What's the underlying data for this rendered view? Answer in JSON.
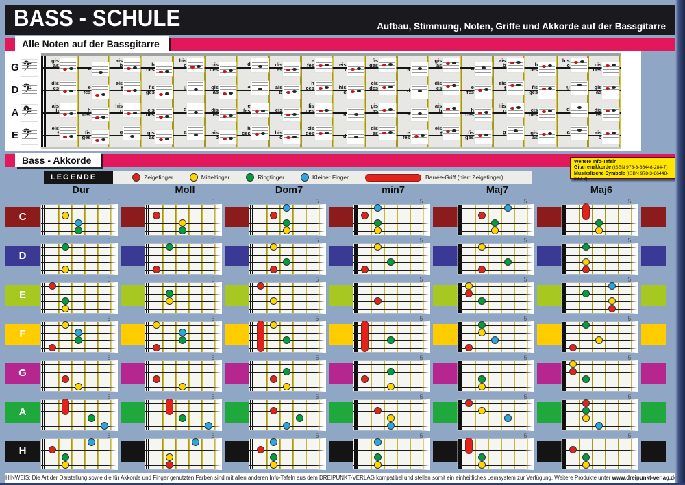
{
  "header": {
    "title": "BASS - SCHULE",
    "subtitle": "Aufbau, Stimmung, Noten, Griffe und Akkorde auf der Bassgitarre"
  },
  "sections": {
    "notes_title": "Alle Noten auf der Bassgitarre",
    "chords_title": "Bass - Akkorde"
  },
  "info_box": {
    "title": "Weitere Info-Tafeln",
    "items": [
      {
        "name": "Gitarrenakkorde",
        "isbn": "(ISBN 978-3-86448-284-7)"
      },
      {
        "name": "Musikalische Symbole",
        "isbn": "(ISBN 978-3-86448-282-3)"
      }
    ]
  },
  "legend": {
    "label": "LEGENDE",
    "fingers": [
      {
        "color": "#E2231A",
        "label": "Zeigefinger"
      },
      {
        "color": "#FFD500",
        "label": "Mittelfinger"
      },
      {
        "color": "#009E3D",
        "label": "Ringfinger"
      },
      {
        "color": "#29A8E0",
        "label": "Kleiner Finger"
      }
    ],
    "barre_label": "Barrée-Griff (hier: Zeigefinger)"
  },
  "fretboard": {
    "strings": [
      {
        "name": "G",
        "notes": [
          "gis|as",
          "a",
          "ais|b",
          "h|ces",
          "his|c",
          "cis|des",
          "d",
          "dis|es",
          "e|fes",
          "eis|f",
          "fis|ges",
          "g",
          "gis|as",
          "a",
          "ais|b",
          "h|ces",
          "his|c",
          "cis|des"
        ]
      },
      {
        "name": "D",
        "notes": [
          "dis|es",
          "e|fes",
          "eis|f",
          "fis|ges",
          "g",
          "gis|as",
          "a",
          "ais|b",
          "h|ces",
          "his|c",
          "cis|des",
          "d",
          "dis|es",
          "e|fes",
          "eis|f",
          "fis|ges",
          "g",
          "gis|as"
        ]
      },
      {
        "name": "A",
        "notes": [
          "ais|b",
          "h|ces",
          "his|c",
          "cis|des",
          "d",
          "dis|es",
          "e|fes",
          "eis|f",
          "fis|ges",
          "g",
          "gis|as",
          "a",
          "ais|b",
          "h|ces",
          "his|c",
          "cis|des",
          "d",
          "dis|es"
        ]
      },
      {
        "name": "E",
        "notes": [
          "eis|f",
          "fis|ges",
          "g",
          "gis|as",
          "a",
          "ais|b",
          "h|ces",
          "his|c",
          "cis|des",
          "d",
          "dis|es",
          "e|fes",
          "eis|f",
          "fis|ges",
          "g",
          "gis|as",
          "a",
          "ais|b"
        ]
      }
    ]
  },
  "chord_grid": {
    "columns": [
      "Dur",
      "Moll",
      "Dom7",
      "min7",
      "Maj7",
      "Maj6"
    ],
    "position_marker": "5",
    "dot_colors": {
      "r": "#E2231A",
      "y": "#FFD500",
      "g": "#009E3D",
      "b": "#29A8E0"
    },
    "rows": [
      {
        "label": "C",
        "color": "#8C1B1B",
        "chords": [
          {
            "dots": [
              [
                "y",
                2,
                2
              ],
              [
                "b",
                3,
                3
              ],
              [
                "g",
                3,
                4
              ]
            ]
          },
          {
            "dots": [
              [
                "r",
                1,
                2
              ],
              [
                "y",
                3,
                3
              ],
              [
                "g",
                3,
                4
              ]
            ]
          },
          {
            "dots": [
              [
                "b",
                3,
                1
              ],
              [
                "r",
                2,
                2
              ],
              [
                "g",
                3,
                3
              ],
              [
                "y",
                3,
                4
              ]
            ]
          },
          {
            "dots": [
              [
                "b",
                2,
                1
              ],
              [
                "r",
                1,
                2
              ],
              [
                "g",
                2,
                3
              ],
              [
                "y",
                2,
                4
              ]
            ]
          },
          {
            "dots": [
              [
                "b",
                4,
                1
              ],
              [
                "r",
                2,
                2
              ],
              [
                "g",
                3,
                3
              ],
              [
                "y",
                3,
                4
              ]
            ]
          },
          {
            "barre": [
              2,
              1,
              2
            ],
            "dots": [
              [
                "g",
                3,
                3
              ],
              [
                "y",
                3,
                4
              ]
            ]
          }
        ]
      },
      {
        "label": "D",
        "color": "#3A3A94",
        "chords": [
          {
            "dots": [
              [
                "g",
                2,
                1
              ],
              [
                "y",
                2,
                4
              ]
            ]
          },
          {
            "dots": [
              [
                "g",
                2,
                1
              ],
              [
                "r",
                1,
                4
              ]
            ]
          },
          {
            "dots": [
              [
                "y",
                2,
                1
              ],
              [
                "g",
                3,
                3
              ],
              [
                "r",
                2,
                4
              ]
            ]
          },
          {
            "dots": [
              [
                "y",
                2,
                1
              ],
              [
                "g",
                3,
                3
              ],
              [
                "r",
                1,
                4
              ]
            ]
          },
          {
            "dots": [
              [
                "y",
                2,
                1
              ],
              [
                "g",
                4,
                3
              ],
              [
                "r",
                2,
                4
              ]
            ]
          },
          {
            "dots": [
              [
                "g",
                2,
                1
              ],
              [
                "y",
                2,
                3
              ],
              [
                "r",
                2,
                4
              ]
            ]
          }
        ]
      },
      {
        "label": "E",
        "color": "#A6C820",
        "chords": [
          {
            "dots": [
              [
                "r",
                1,
                1
              ],
              [
                "g",
                2,
                3
              ],
              [
                "y",
                2,
                4
              ]
            ]
          },
          {
            "dots": [
              [
                "g",
                2,
                2
              ],
              [
                "y",
                2,
                3
              ]
            ]
          },
          {
            "dots": [
              [
                "r",
                1,
                1
              ],
              [
                "y",
                2,
                3
              ]
            ]
          },
          {
            "dots": [
              [
                "r",
                2,
                3
              ]
            ]
          },
          {
            "dots": [
              [
                "y",
                1,
                1
              ],
              [
                "r",
                1,
                2
              ],
              [
                "g",
                2,
                3
              ]
            ]
          },
          {
            "dots": [
              [
                "b",
                4,
                1
              ],
              [
                "g",
                2,
                2
              ],
              [
                "y",
                4,
                3
              ],
              [
                "r",
                4,
                4
              ]
            ]
          }
        ]
      },
      {
        "label": "F",
        "color": "#FFCC00",
        "chords": [
          {
            "dots": [
              [
                "y",
                2,
                1
              ],
              [
                "b",
                3,
                2
              ],
              [
                "g",
                3,
                3
              ],
              [
                "r",
                1,
                4
              ]
            ]
          },
          {
            "dots": [
              [
                "y",
                1,
                1
              ],
              [
                "b",
                3,
                2
              ],
              [
                "g",
                3,
                3
              ],
              [
                "r",
                1,
                4
              ]
            ]
          },
          {
            "barre": [
              1,
              1,
              4
            ],
            "dots": [
              [
                "y",
                2,
                1
              ],
              [
                "g",
                3,
                3
              ]
            ]
          },
          {
            "barre": [
              1,
              1,
              4
            ],
            "dots": [
              [
                "g",
                3,
                3
              ]
            ]
          },
          {
            "dots": [
              [
                "g",
                2,
                1
              ],
              [
                "y",
                2,
                2
              ],
              [
                "b",
                3,
                3
              ],
              [
                "r",
                1,
                4
              ]
            ]
          },
          {
            "dots": [
              [
                "g",
                2,
                1
              ],
              [
                "y",
                3,
                3
              ],
              [
                "r",
                1,
                4
              ]
            ]
          }
        ]
      },
      {
        "label": "G",
        "color": "#B5268E",
        "chords": [
          {
            "dots": [
              [
                "r",
                2,
                3
              ],
              [
                "y",
                3,
                4
              ]
            ]
          },
          {
            "dots": [
              [
                "r",
                1,
                3
              ],
              [
                "y",
                3,
                4
              ]
            ]
          },
          {
            "dots": [
              [
                "g",
                3,
                2
              ],
              [
                "r",
                2,
                3
              ],
              [
                "y",
                3,
                4
              ]
            ]
          },
          {
            "dots": [
              [
                "g",
                3,
                2
              ],
              [
                "r",
                1,
                3
              ],
              [
                "y",
                3,
                4
              ]
            ]
          },
          {
            "dots": [
              [
                "g",
                2,
                3
              ],
              [
                "y",
                2,
                4
              ]
            ]
          },
          {
            "dots": [
              [
                "y",
                1,
                1
              ],
              [
                "r",
                1,
                2
              ],
              [
                "g",
                2,
                3
              ]
            ]
          }
        ]
      },
      {
        "label": "A",
        "color": "#1FA93D",
        "chords": [
          {
            "barre": [
              2,
              1,
              2
            ],
            "dots": [
              [
                "g",
                4,
                3
              ],
              [
                "b",
                5,
                4
              ]
            ]
          },
          {
            "barre": [
              2,
              1,
              2
            ],
            "dots": [
              [
                "g",
                3,
                3
              ],
              [
                "b",
                5,
                4
              ]
            ]
          },
          {
            "dots": [
              [
                "r",
                2,
                2
              ],
              [
                "g",
                4,
                3
              ],
              [
                "b",
                3,
                4
              ]
            ]
          },
          {
            "dots": [
              [
                "r",
                2,
                2
              ],
              [
                "y",
                3,
                3
              ],
              [
                "b",
                3,
                4
              ]
            ]
          },
          {
            "dots": [
              [
                "r",
                1,
                1
              ],
              [
                "y",
                2,
                2
              ],
              [
                "b",
                4,
                3
              ]
            ]
          },
          {
            "dots": [
              [
                "r",
                2,
                1
              ],
              [
                "g",
                2,
                2
              ],
              [
                "y",
                2,
                3
              ],
              [
                "b",
                3,
                4
              ]
            ]
          }
        ]
      },
      {
        "label": "H",
        "color": "#141414",
        "chords": [
          {
            "dots": [
              [
                "b",
                4,
                1
              ],
              [
                "r",
                1,
                2
              ],
              [
                "g",
                2,
                3
              ],
              [
                "y",
                2,
                4
              ]
            ]
          },
          {
            "dots": [
              [
                "b",
                4,
                1
              ],
              [
                "y",
                2,
                3
              ],
              [
                "r",
                2,
                4
              ]
            ]
          },
          {
            "dots": [
              [
                "b",
                2,
                1
              ],
              [
                "r",
                1,
                2
              ],
              [
                "g",
                2,
                3
              ],
              [
                "y",
                2,
                4
              ]
            ]
          },
          {
            "dots": [
              [
                "b",
                2,
                1
              ],
              [
                "g",
                2,
                3
              ],
              [
                "y",
                2,
                4
              ]
            ]
          },
          {
            "barre": [
              1,
              1,
              2
            ],
            "dots": [
              [
                "g",
                2,
                3
              ],
              [
                "y",
                2,
                4
              ]
            ]
          },
          {
            "dots": [
              [
                "r",
                1,
                2
              ],
              [
                "g",
                2,
                3
              ],
              [
                "y",
                2,
                4
              ]
            ]
          }
        ]
      }
    ]
  },
  "footer": {
    "text": "HINWEIS: Die Art der Darstellung sowie die für Akkorde und Finger genutzten Farben sind mit allen anderen Info-Tafeln aus dem DREIPUNKT-VERLAG kompatibel und stellen somit ein einheitliches Lernsystem zur Verfügung. Weitere Produkte unter ",
    "site": "www.dreipunkt-verlag.de"
  }
}
